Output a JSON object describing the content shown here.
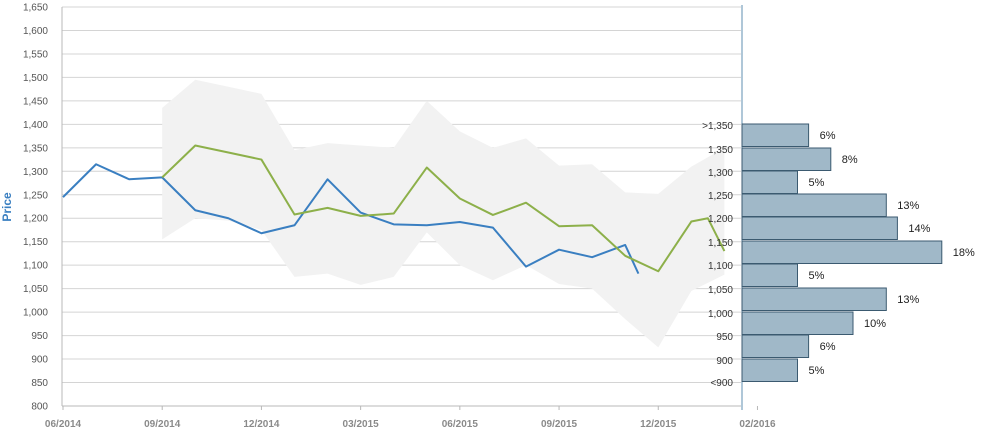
{
  "chart_data": {
    "type": "line",
    "ylabel": "Price",
    "xlabel": "",
    "title": "",
    "ylim": [
      800,
      1650
    ],
    "yticks": [
      "800",
      "850",
      "900",
      "950",
      "1,000",
      "1,050",
      "1,100",
      "1,150",
      "1,200",
      "1,250",
      "1,300",
      "1,350",
      "1,400",
      "1,450",
      "1,500",
      "1,550",
      "1,600",
      "1,650"
    ],
    "xticks": [
      "06/2014",
      "09/2014",
      "12/2014",
      "03/2015",
      "06/2015",
      "09/2015",
      "12/2015",
      "02/2016"
    ],
    "grid": true,
    "series": [
      {
        "color": "#3a7fc1",
        "points": [
          [
            0,
            1245
          ],
          [
            1,
            1315
          ],
          [
            2,
            1283
          ],
          [
            3,
            1287
          ],
          [
            4,
            1217
          ],
          [
            5,
            1200
          ],
          [
            6,
            1168
          ],
          [
            7,
            1185
          ],
          [
            8,
            1283
          ],
          [
            9,
            1212
          ],
          [
            10,
            1187
          ],
          [
            11,
            1185
          ],
          [
            12,
            1192
          ],
          [
            13,
            1180
          ],
          [
            14,
            1097
          ],
          [
            15,
            1133
          ],
          [
            16,
            1117
          ],
          [
            17,
            1143
          ],
          [
            17.4,
            1082
          ]
        ]
      },
      {
        "color": "#8db04a",
        "points": [
          [
            3,
            1287
          ],
          [
            4,
            1355
          ],
          [
            5,
            1340
          ],
          [
            6,
            1325
          ],
          [
            7,
            1208
          ],
          [
            8,
            1222
          ],
          [
            9,
            1205
          ],
          [
            10,
            1210
          ],
          [
            11,
            1308
          ],
          [
            12,
            1242
          ],
          [
            13,
            1207
          ],
          [
            14,
            1233
          ],
          [
            15,
            1183
          ],
          [
            16,
            1185
          ],
          [
            17,
            1120
          ],
          [
            18,
            1087
          ],
          [
            19,
            1193
          ],
          [
            19.5,
            1200
          ],
          [
            20,
            1130
          ]
        ]
      }
    ],
    "range_band": {
      "color": "#f2f2f2",
      "upper": [
        [
          3,
          1435
        ],
        [
          4,
          1495
        ],
        [
          5,
          1480
        ],
        [
          6,
          1465
        ],
        [
          7,
          1345
        ],
        [
          8,
          1360
        ],
        [
          9,
          1355
        ],
        [
          10,
          1350
        ],
        [
          11,
          1450
        ],
        [
          12,
          1385
        ],
        [
          13,
          1350
        ],
        [
          14,
          1370
        ],
        [
          15,
          1312
        ],
        [
          16,
          1315
        ],
        [
          17,
          1255
        ],
        [
          18,
          1252
        ],
        [
          19,
          1310
        ],
        [
          20,
          1350
        ]
      ],
      "lower": [
        [
          3,
          1155
        ],
        [
          4,
          1200
        ],
        [
          5,
          1195
        ],
        [
          6,
          1175
        ],
        [
          7,
          1075
        ],
        [
          8,
          1082
        ],
        [
          9,
          1058
        ],
        [
          10,
          1075
        ],
        [
          11,
          1170
        ],
        [
          12,
          1100
        ],
        [
          13,
          1068
        ],
        [
          14,
          1100
        ],
        [
          15,
          1060
        ],
        [
          16,
          1050
        ],
        [
          17,
          985
        ],
        [
          18,
          925
        ],
        [
          19,
          1045
        ],
        [
          20,
          1080
        ]
      ]
    },
    "distribution": {
      "color": "#a0b8c8",
      "bins": [
        {
          "label": ">1,350",
          "value": 6,
          "display": "6%"
        },
        {
          "label": "1,350",
          "value": 8,
          "display": "8%"
        },
        {
          "label": "1,300",
          "value": 5,
          "display": "5%"
        },
        {
          "label": "1,250",
          "value": 13,
          "display": "13%"
        },
        {
          "label": "1,200",
          "value": 14,
          "display": "14%"
        },
        {
          "label": "1,150",
          "value": 18,
          "display": "18%"
        },
        {
          "label": "1,100",
          "value": 5,
          "display": "5%"
        },
        {
          "label": "1,050",
          "value": 13,
          "display": "13%"
        },
        {
          "label": "1,000",
          "value": 10,
          "display": "10%"
        },
        {
          "label": "950",
          "value": 6,
          "display": "6%"
        },
        {
          "label": "900",
          "value": 5,
          "display": "5%"
        },
        {
          "label": "<900",
          "value": null,
          "display": ""
        }
      ]
    }
  }
}
